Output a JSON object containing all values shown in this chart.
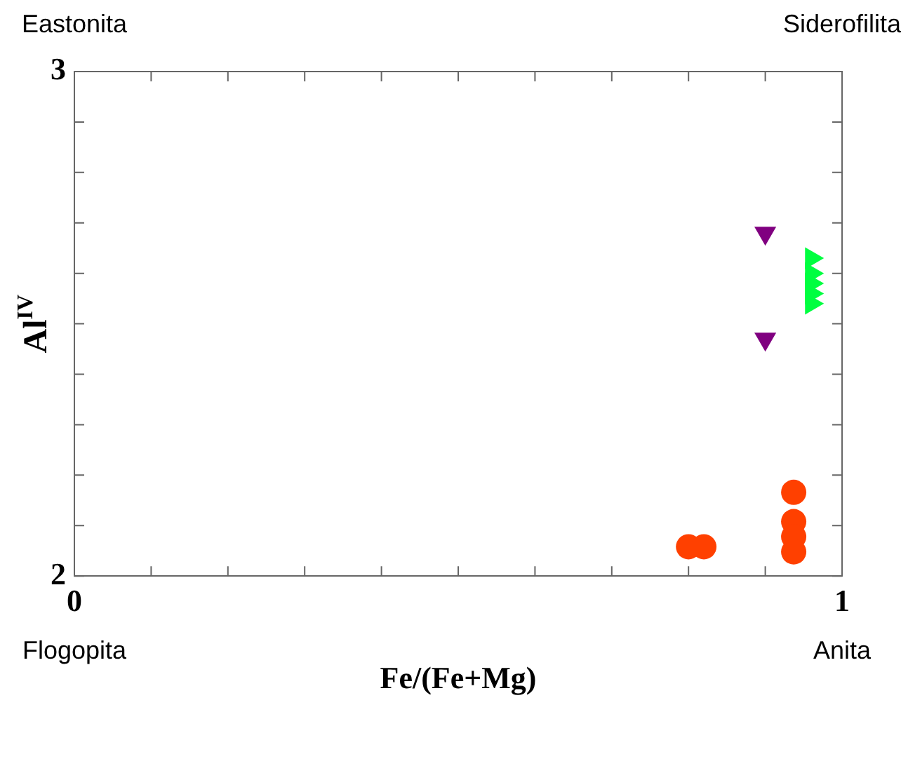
{
  "chart_data": {
    "type": "scatter",
    "xlabel": "Fe/(Fe+Mg)",
    "ylabel": "Al$^{IV}$",
    "xlim": [
      0,
      1
    ],
    "ylim": [
      2,
      3
    ],
    "xticks": [
      0,
      {
        "value": 0.1,
        "label": null
      },
      {
        "value": 0.2,
        "label": null
      },
      {
        "value": 0.3,
        "label": null
      },
      {
        "value": 0.4,
        "label": null
      },
      {
        "value": 0.5,
        "label": null
      },
      {
        "value": 0.6,
        "label": null
      },
      {
        "value": 0.7,
        "label": null
      },
      {
        "value": 0.8,
        "label": null
      },
      {
        "value": 0.9,
        "label": null
      },
      1
    ],
    "yticks": [
      2,
      {
        "value": 2.1,
        "label": null
      },
      {
        "value": 2.2,
        "label": null
      },
      {
        "value": 2.3,
        "label": null
      },
      {
        "value": 2.4,
        "label": null
      },
      {
        "value": 2.5,
        "label": null
      },
      {
        "value": 2.6,
        "label": null
      },
      {
        "value": 2.7,
        "label": null
      },
      {
        "value": 2.8,
        "label": null
      },
      {
        "value": 2.9,
        "label": null
      },
      3
    ],
    "grid": false,
    "legend": false,
    "annotations": [
      "Eastonita",
      "Siderofilita",
      "Flogopita",
      "Anita"
    ],
    "series": [
      {
        "color": "#ff4000",
        "marker": "circle",
        "x": [
          0.8,
          0.82,
          0.937,
          0.937,
          0.937,
          0.937
        ],
        "values": [
          2.058,
          2.058,
          2.166,
          2.108,
          2.078,
          2.048
        ]
      },
      {
        "color": "#800080",
        "marker": "triangle-down",
        "x": [
          0.9,
          0.9
        ],
        "values": [
          2.68,
          2.47
        ]
      },
      {
        "color": "#00ff40",
        "marker": "triangle-right",
        "x": [
          0.96,
          0.96,
          0.96,
          0.96,
          0.96
        ],
        "values": [
          2.63,
          2.6,
          2.58,
          2.56,
          2.54
        ]
      }
    ]
  }
}
